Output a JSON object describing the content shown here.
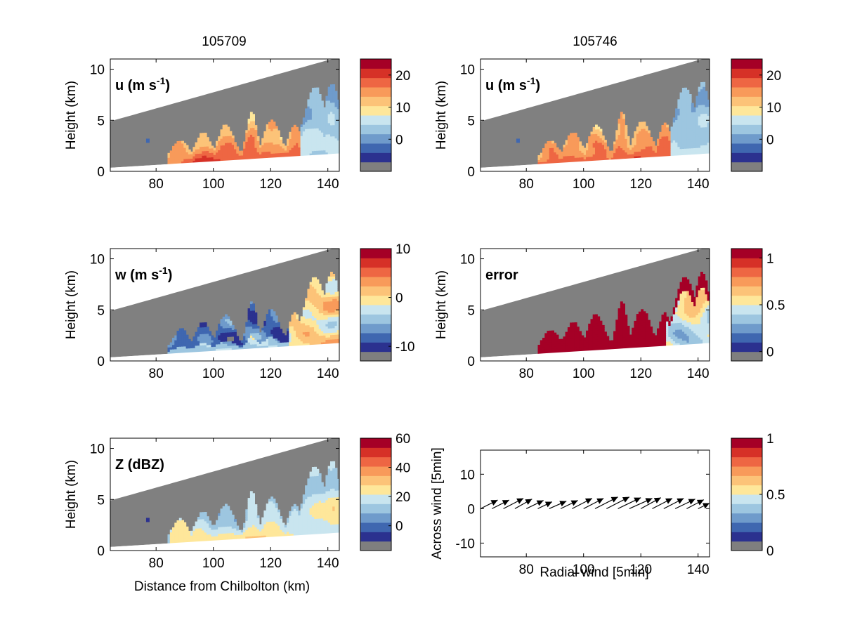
{
  "column_titles": [
    "105709",
    "105746"
  ],
  "palette": [
    "#7f7f7f",
    "#2b318f",
    "#3f67b0",
    "#6f9bcb",
    "#9dc6e0",
    "#c9e5ef",
    "#fee79a",
    "#fcc378",
    "#f89a5a",
    "#ee6643",
    "#d63127",
    "#a50026"
  ],
  "mask_color": "#808080",
  "panel_axes": {
    "xlabel_distance": "Distance from Chilbolton (km)",
    "ylabel_height": "Height (km)",
    "xticks": [
      80,
      100,
      120,
      140
    ],
    "yticks": [
      0,
      5,
      10
    ],
    "xlim": [
      64,
      144
    ],
    "ylim": [
      0,
      11
    ]
  },
  "chart_data": [
    {
      "id": "u-left",
      "type": "heatmap",
      "label": "u (m s",
      "label_sup": "-1",
      "label_end": ")",
      "field": "u",
      "seed": 11,
      "clim": [
        -10,
        25
      ],
      "colorbar_ticks": [
        {
          "v": 0,
          "t": "0"
        },
        {
          "v": 10,
          "t": "10"
        },
        {
          "v": 20,
          "t": "20"
        }
      ]
    },
    {
      "id": "u-right",
      "type": "heatmap",
      "label": "u (m s",
      "label_sup": "-1",
      "label_end": ")",
      "field": "u",
      "seed": 23,
      "clim": [
        -10,
        25
      ],
      "colorbar_ticks": [
        {
          "v": 0,
          "t": "0"
        },
        {
          "v": 10,
          "t": "10"
        },
        {
          "v": 20,
          "t": "20"
        }
      ]
    },
    {
      "id": "w-left",
      "type": "heatmap",
      "label": "w (m s",
      "label_sup": "-1",
      "label_end": ")",
      "field": "w",
      "seed": 37,
      "clim": [
        -13,
        10
      ],
      "colorbar_ticks": [
        {
          "v": -10,
          "t": "-10"
        },
        {
          "v": 0,
          "t": "0"
        },
        {
          "v": 10,
          "t": "10"
        }
      ]
    },
    {
      "id": "error-right",
      "type": "heatmap",
      "label": "error",
      "label_sup": "",
      "label_end": "",
      "field": "err",
      "seed": 41,
      "clim": [
        -0.1,
        1.1
      ],
      "colorbar_ticks": [
        {
          "v": 0,
          "t": "0"
        },
        {
          "v": 0.5,
          "t": "0.5"
        },
        {
          "v": 1,
          "t": "1"
        }
      ]
    },
    {
      "id": "z-left",
      "type": "heatmap",
      "label": "Z (dBZ)",
      "label_sup": "",
      "label_end": "",
      "field": "z",
      "seed": 53,
      "clim": [
        -17,
        60
      ],
      "colorbar_ticks": [
        {
          "v": 0,
          "t": "0"
        },
        {
          "v": 20,
          "t": "20"
        },
        {
          "v": 40,
          "t": "40"
        },
        {
          "v": 60,
          "t": "60"
        }
      ]
    },
    {
      "id": "vectors-right",
      "type": "quiver",
      "xlabel": "Radial wind [5min]",
      "ylabel": "Across wind [5min]",
      "xlim": [
        64,
        144
      ],
      "ylim": [
        -14,
        17
      ],
      "xticks": [
        80,
        100,
        120,
        140
      ],
      "yticks": [
        -10,
        0,
        10
      ],
      "clim": [
        0,
        1
      ],
      "colorbar_ticks": [
        {
          "v": 0,
          "t": "0"
        },
        {
          "v": 0.5,
          "t": "0.5"
        },
        {
          "v": 1,
          "t": "1"
        }
      ],
      "arrows": [
        {
          "x": 64,
          "y": 0.0,
          "dx": 6,
          "dy": 2.5
        },
        {
          "x": 68,
          "y": 0.0,
          "dx": 6,
          "dy": 2.5
        },
        {
          "x": 72,
          "y": 0.0,
          "dx": 7,
          "dy": 3.0
        },
        {
          "x": 76,
          "y": 0.0,
          "dx": 6,
          "dy": 2.8
        },
        {
          "x": 80,
          "y": 0.0,
          "dx": 6,
          "dy": 2.4
        },
        {
          "x": 84,
          "y": 0.0,
          "dx": 5,
          "dy": 2.0
        },
        {
          "x": 88,
          "y": 0.0,
          "dx": 6,
          "dy": 2.2
        },
        {
          "x": 92,
          "y": 0.0,
          "dx": 6,
          "dy": 2.4
        },
        {
          "x": 96,
          "y": 0.0,
          "dx": 7,
          "dy": 3.0
        },
        {
          "x": 100,
          "y": 0.0,
          "dx": 7,
          "dy": 3.0
        },
        {
          "x": 104,
          "y": 0.0,
          "dx": 8,
          "dy": 3.4
        },
        {
          "x": 108,
          "y": 0.0,
          "dx": 8,
          "dy": 3.4
        },
        {
          "x": 112,
          "y": 0.0,
          "dx": 8,
          "dy": 3.2
        },
        {
          "x": 116,
          "y": 0.0,
          "dx": 8,
          "dy": 3.0
        },
        {
          "x": 120,
          "y": 0.0,
          "dx": 7,
          "dy": 3.2
        },
        {
          "x": 124,
          "y": 0.0,
          "dx": 7,
          "dy": 3.0
        },
        {
          "x": 128,
          "y": 0.0,
          "dx": 7,
          "dy": 3.0
        },
        {
          "x": 132,
          "y": 0.0,
          "dx": 7,
          "dy": 2.8
        },
        {
          "x": 136,
          "y": 0.0,
          "dx": 6,
          "dy": 2.6
        },
        {
          "x": 140,
          "y": 0.0,
          "dx": 4,
          "dy": 1.6
        }
      ]
    }
  ]
}
